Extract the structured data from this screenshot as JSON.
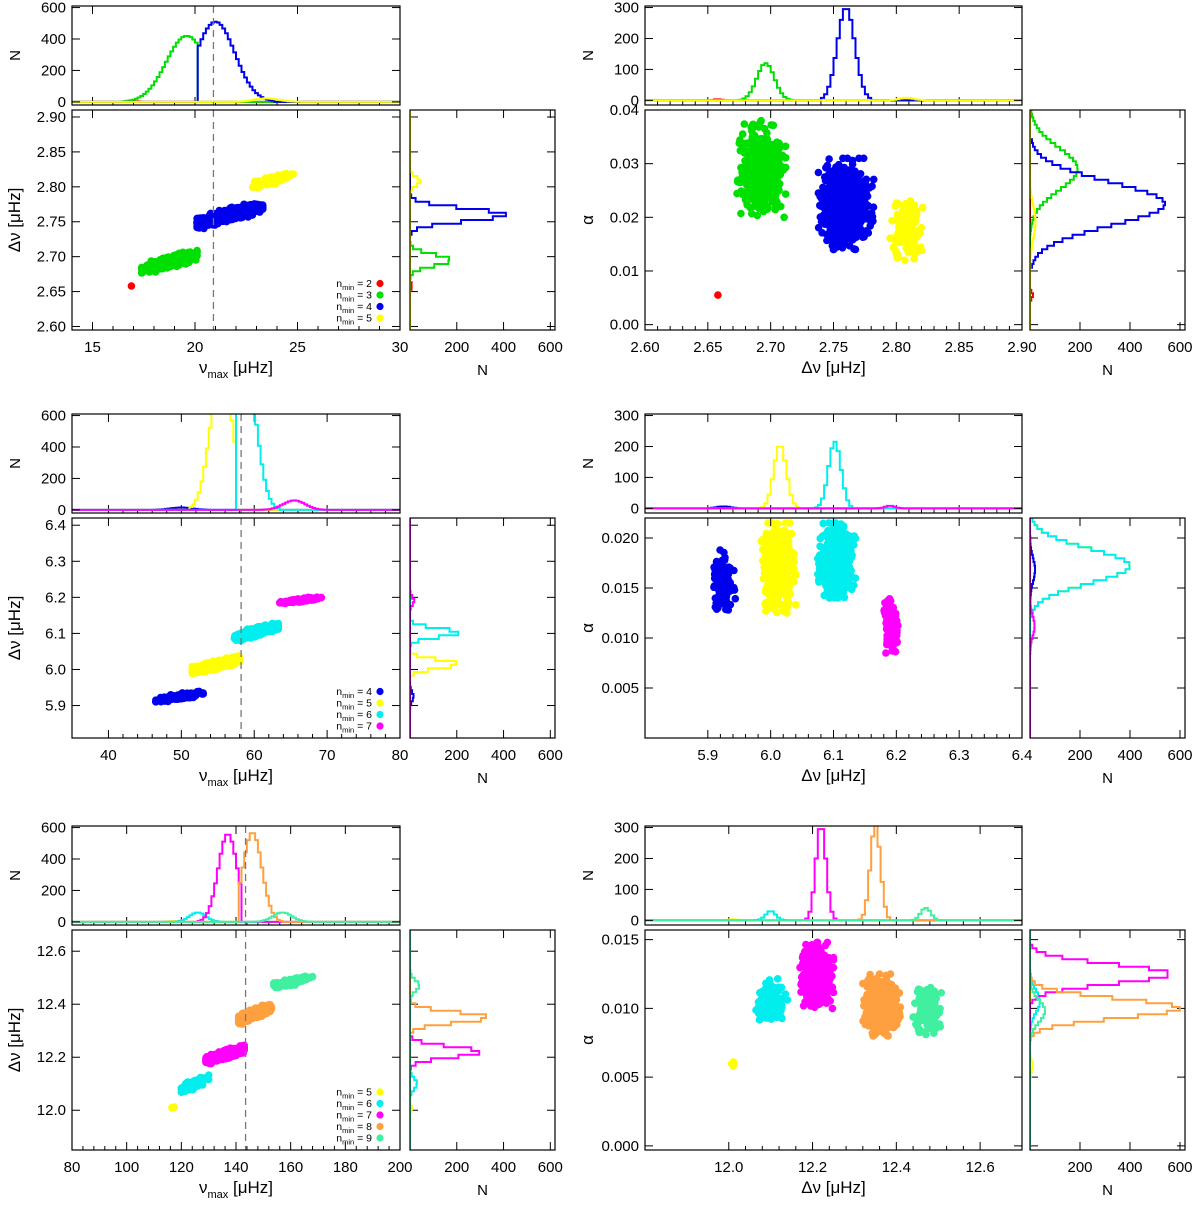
{
  "chart_data": [
    {
      "type": "scatter",
      "xlabel": "ν_max [μHz]",
      "ylabel": "Δν [μHz]",
      "xlim": [
        14,
        30
      ],
      "xticks": [
        15,
        20,
        25,
        30
      ],
      "ylim": [
        2.595,
        2.91
      ],
      "yticks": [
        2.6,
        2.65,
        2.7,
        2.75,
        2.8,
        2.85,
        2.9
      ],
      "ydec": 2,
      "vline": 20.9,
      "legend": [
        "n_min = 2",
        "n_min = 3",
        "n_min = 4",
        "n_min = 5"
      ],
      "legend_colors": [
        "#ff0000",
        "#00e000",
        "#0000ee",
        "#ffff00"
      ],
      "clusters": [
        {
          "color": "#ff0000",
          "x": [
            16.9,
            16.9
          ],
          "y": [
            2.658,
            2.658
          ],
          "n": 1
        },
        {
          "color": "#00e000",
          "x": [
            17.4,
            20.1
          ],
          "y": [
            2.672,
            2.712
          ],
          "n": 420
        },
        {
          "color": "#0000ee",
          "x": [
            20.1,
            23.3
          ],
          "y": [
            2.738,
            2.782
          ],
          "n": 700
        },
        {
          "color": "#ffff00",
          "x": [
            22.8,
            24.8
          ],
          "y": [
            2.795,
            2.825
          ],
          "n": 160
        }
      ],
      "top_hist": {
        "ylabel": "N",
        "ylim": [
          -20,
          610
        ],
        "yticks": [
          0,
          200,
          400,
          600
        ],
        "series": [
          {
            "color": "#ff0000",
            "center": 16.9,
            "sigma": 0.25,
            "peak": 6
          },
          {
            "color": "#00e000",
            "center": 19.6,
            "sigma": 1.0,
            "peak": 420,
            "max": 20.15
          },
          {
            "color": "#0000ee",
            "center": 21.0,
            "sigma": 0.95,
            "peak": 510,
            "min": 20.15
          },
          {
            "color": "#ffff00",
            "center": 23.5,
            "sigma": 0.6,
            "peak": 22
          }
        ]
      },
      "right_hist": {
        "xlabel": "N",
        "xlim": [
          0,
          620
        ],
        "xticks": [
          200,
          400,
          600
        ],
        "xtick_labels": [
          "200",
          "400",
          "600"
        ],
        "series": [
          {
            "color": "#ff0000",
            "center": 2.658,
            "sigma": 0.003,
            "peak": 10
          },
          {
            "color": "#00e000",
            "center": 2.695,
            "sigma": 0.008,
            "peak": 175
          },
          {
            "color": "#0000ee",
            "center": 2.76,
            "sigma": 0.009,
            "peak": 410
          },
          {
            "color": "#ffff00",
            "center": 2.808,
            "sigma": 0.006,
            "peak": 45
          }
        ]
      }
    },
    {
      "type": "scatter",
      "xlabel": "Δν [μHz]",
      "ylabel": "α",
      "xlim": [
        2.6,
        2.9
      ],
      "xticks": [
        2.6,
        2.65,
        2.7,
        2.75,
        2.8,
        2.85,
        2.9
      ],
      "xdec": 2,
      "ylim": [
        -0.001,
        0.04
      ],
      "yticks": [
        0.0,
        0.01,
        0.02,
        0.03,
        0.04
      ],
      "ydec": 2,
      "clusters": [
        {
          "color": "#ff0000",
          "x": [
            2.658,
            2.658
          ],
          "y": [
            0.0055,
            0.0055
          ],
          "n": 1
        },
        {
          "color": "#00e000",
          "x": [
            2.672,
            2.712
          ],
          "y": [
            0.02,
            0.038
          ],
          "n": 420
        },
        {
          "color": "#0000ee",
          "x": [
            2.738,
            2.782
          ],
          "y": [
            0.014,
            0.031
          ],
          "n": 700
        },
        {
          "color": "#ffff00",
          "x": [
            2.795,
            2.822
          ],
          "y": [
            0.011,
            0.024
          ],
          "n": 120
        }
      ],
      "top_hist": {
        "ylabel": "N",
        "ylim": [
          -15,
          305
        ],
        "yticks": [
          0,
          100,
          200,
          300
        ],
        "series": [
          {
            "color": "#ff0000",
            "center": 2.658,
            "sigma": 0.003,
            "peak": 3
          },
          {
            "color": "#00e000",
            "center": 2.696,
            "sigma": 0.007,
            "peak": 120
          },
          {
            "color": "#0000ee",
            "center": 2.76,
            "sigma": 0.007,
            "peak": 300
          },
          {
            "color": "#ffff00",
            "center": 2.808,
            "sigma": 0.006,
            "peak": 8
          }
        ]
      },
      "right_hist": {
        "xlabel": "N",
        "xlim": [
          0,
          620
        ],
        "xticks": [
          200,
          400,
          600
        ],
        "xtick_labels": [
          "200",
          "400",
          "600"
        ],
        "series": [
          {
            "color": "#ff0000",
            "center": 0.0055,
            "sigma": 0.0005,
            "peak": 12
          },
          {
            "color": "#00e000",
            "center": 0.029,
            "sigma": 0.004,
            "peak": 190
          },
          {
            "color": "#0000ee",
            "center": 0.0225,
            "sigma": 0.004,
            "peak": 540
          },
          {
            "color": "#ffff00",
            "center": 0.019,
            "sigma": 0.003,
            "peak": 22
          }
        ]
      }
    },
    {
      "type": "scatter",
      "xlabel": "ν_max [μHz]",
      "ylabel": "Δν [μHz]",
      "xlim": [
        35,
        80
      ],
      "xticks": [
        40,
        50,
        60,
        70,
        80
      ],
      "ylim": [
        5.81,
        6.42
      ],
      "yticks": [
        5.9,
        6.0,
        6.1,
        6.2,
        6.3,
        6.4
      ],
      "ydec": 1,
      "vline": 58.2,
      "legend": [
        "n_min = 4",
        "n_min = 5",
        "n_min = 6",
        "n_min = 7"
      ],
      "legend_colors": [
        "#0000ee",
        "#ffff00",
        "#00eeee",
        "#ff00ff"
      ],
      "clusters": [
        {
          "color": "#0000ee",
          "x": [
            46.5,
            53.0
          ],
          "y": [
            5.905,
            5.945
          ],
          "n": 140
        },
        {
          "color": "#ffff00",
          "x": [
            51.5,
            58.0
          ],
          "y": [
            5.985,
            6.04
          ],
          "n": 520
        },
        {
          "color": "#00eeee",
          "x": [
            57.3,
            63.3
          ],
          "y": [
            6.075,
            6.135
          ],
          "n": 560
        },
        {
          "color": "#ff00ff",
          "x": [
            63.5,
            69.5
          ],
          "y": [
            6.18,
            6.205
          ],
          "n": 150
        }
      ],
      "top_hist": {
        "ylabel": "N",
        "ylim": [
          -20,
          610
        ],
        "yticks": [
          0,
          200,
          400,
          600
        ],
        "series": [
          {
            "color": "#0000ee",
            "center": 50.0,
            "sigma": 1.5,
            "peak": 15
          },
          {
            "color": "#ffff00",
            "center": 55.5,
            "sigma": 1.5,
            "peak": 900,
            "max": 57.4
          },
          {
            "color": "#00eeee",
            "center": 58.8,
            "sigma": 1.5,
            "peak": 900,
            "min": 57.4
          },
          {
            "color": "#ff00ff",
            "center": 65.5,
            "sigma": 1.5,
            "peak": 60
          }
        ]
      },
      "right_hist": {
        "xlabel": "N",
        "xlim": [
          0,
          620
        ],
        "xticks": [
          200,
          400,
          600
        ],
        "xtick_labels": [
          "200",
          "400",
          "600"
        ],
        "series": [
          {
            "color": "#0000ee",
            "center": 5.925,
            "sigma": 0.012,
            "peak": 15
          },
          {
            "color": "#ffff00",
            "center": 6.015,
            "sigma": 0.012,
            "peak": 205
          },
          {
            "color": "#00eeee",
            "center": 6.102,
            "sigma": 0.012,
            "peak": 210
          },
          {
            "color": "#ff00ff",
            "center": 6.19,
            "sigma": 0.01,
            "peak": 18
          }
        ]
      }
    },
    {
      "type": "scatter",
      "xlabel": "Δν [μHz]",
      "ylabel": "α",
      "xlim": [
        5.8,
        6.4
      ],
      "xticks": [
        5.9,
        6.0,
        6.1,
        6.2,
        6.3,
        6.4
      ],
      "xdec": 1,
      "ylim": [
        0.0,
        0.022
      ],
      "yticks": [
        0.005,
        0.01,
        0.015,
        0.02
      ],
      "ydec": 3,
      "clusters": [
        {
          "color": "#0000ee",
          "x": [
            5.905,
            5.945
          ],
          "y": [
            0.012,
            0.0188
          ],
          "n": 110
        },
        {
          "color": "#ffff00",
          "x": [
            5.985,
            6.04
          ],
          "y": [
            0.0125,
            0.0215
          ],
          "n": 520
        },
        {
          "color": "#00eeee",
          "x": [
            6.075,
            6.135
          ],
          "y": [
            0.014,
            0.0215
          ],
          "n": 520
        },
        {
          "color": "#ff00ff",
          "x": [
            6.178,
            6.205
          ],
          "y": [
            0.0085,
            0.014
          ],
          "n": 110
        }
      ],
      "top_hist": {
        "ylabel": "N",
        "ylim": [
          -15,
          305
        ],
        "yticks": [
          0,
          100,
          200,
          300
        ],
        "series": [
          {
            "color": "#0000ee",
            "center": 5.925,
            "sigma": 0.012,
            "peak": 6
          },
          {
            "color": "#ffff00",
            "center": 6.015,
            "sigma": 0.01,
            "peak": 205
          },
          {
            "color": "#00eeee",
            "center": 6.102,
            "sigma": 0.01,
            "peak": 215
          },
          {
            "color": "#ff00ff",
            "center": 6.19,
            "sigma": 0.008,
            "peak": 8
          }
        ]
      },
      "right_hist": {
        "xlabel": "N",
        "xlim": [
          0,
          620
        ],
        "xticks": [
          200,
          400,
          600
        ],
        "xtick_labels": [
          "200",
          "400",
          "600"
        ],
        "series": [
          {
            "color": "#0000ee",
            "center": 0.0168,
            "sigma": 0.0012,
            "peak": 20
          },
          {
            "color": "#ffff00",
            "center": 0.0172,
            "sigma": 0.0017,
            "peak": 400
          },
          {
            "color": "#00eeee",
            "center": 0.0172,
            "sigma": 0.0017,
            "peak": 400
          },
          {
            "color": "#ff00ff",
            "center": 0.0112,
            "sigma": 0.001,
            "peak": 18
          }
        ]
      }
    },
    {
      "type": "scatter",
      "xlabel": "ν_max [μHz]",
      "ylabel": "Δν [μHz]",
      "xlim": [
        80,
        200
      ],
      "xticks": [
        80,
        100,
        120,
        140,
        160,
        180,
        200
      ],
      "ylim": [
        11.85,
        12.68
      ],
      "yticks": [
        12.0,
        12.2,
        12.4,
        12.6
      ],
      "ydec": 1,
      "vline": 143.5,
      "legend": [
        "n_min = 5",
        "n_min = 6",
        "n_min = 7",
        "n_min = 8",
        "n_min = 9"
      ],
      "legend_colors": [
        "#ffff00",
        "#00eeee",
        "#ff00ff",
        "#ffa040",
        "#40f0a0"
      ],
      "clusters": [
        {
          "color": "#ffff00",
          "x": [
            116,
            118
          ],
          "y": [
            12.005,
            12.015
          ],
          "n": 8
        },
        {
          "color": "#00eeee",
          "x": [
            120,
            130
          ],
          "y": [
            12.06,
            12.14
          ],
          "n": 120
        },
        {
          "color": "#ff00ff",
          "x": [
            129,
            143
          ],
          "y": [
            12.17,
            12.25
          ],
          "n": 520
        },
        {
          "color": "#ffa040",
          "x": [
            141,
            153
          ],
          "y": [
            12.32,
            12.41
          ],
          "n": 520
        },
        {
          "color": "#40f0a0",
          "x": [
            153,
            168
          ],
          "y": [
            12.45,
            12.52
          ],
          "n": 140
        }
      ],
      "top_hist": {
        "ylabel": "N",
        "ylim": [
          -20,
          610
        ],
        "yticks": [
          0,
          200,
          400,
          600
        ],
        "series": [
          {
            "color": "#ffff00",
            "center": 117,
            "sigma": 2,
            "peak": 5
          },
          {
            "color": "#00eeee",
            "center": 126,
            "sigma": 3,
            "peak": 60
          },
          {
            "color": "#ff00ff",
            "center": 137,
            "sigma": 3.5,
            "peak": 560,
            "max": 141.5
          },
          {
            "color": "#ffa040",
            "center": 146,
            "sigma": 3.5,
            "peak": 570,
            "min": 141.5
          },
          {
            "color": "#40f0a0",
            "center": 157,
            "sigma": 3.5,
            "peak": 60
          }
        ]
      },
      "right_hist": {
        "xlabel": "N",
        "xlim": [
          0,
          620
        ],
        "xticks": [
          200,
          400,
          600
        ],
        "xtick_labels": [
          "200",
          "400",
          "600"
        ],
        "series": [
          {
            "color": "#ffff00",
            "center": 12.01,
            "sigma": 0.01,
            "peak": 8
          },
          {
            "color": "#00eeee",
            "center": 12.1,
            "sigma": 0.02,
            "peak": 30
          },
          {
            "color": "#ff00ff",
            "center": 12.22,
            "sigma": 0.02,
            "peak": 300
          },
          {
            "color": "#ffa040",
            "center": 12.35,
            "sigma": 0.02,
            "peak": 335
          },
          {
            "color": "#40f0a0",
            "center": 12.47,
            "sigma": 0.02,
            "peak": 40
          }
        ]
      }
    },
    {
      "type": "scatter",
      "xlabel": "Δν [μHz]",
      "ylabel": "α",
      "xlim": [
        11.8,
        12.7
      ],
      "xticks": [
        12.0,
        12.2,
        12.4,
        12.6
      ],
      "xdec": 1,
      "ylim": [
        -0.0003,
        0.0157
      ],
      "yticks": [
        0.0,
        0.005,
        0.01,
        0.015
      ],
      "ydec": 3,
      "clusters": [
        {
          "color": "#ffff00",
          "x": [
            12.005,
            12.015
          ],
          "y": [
            0.0055,
            0.0062
          ],
          "n": 5
        },
        {
          "color": "#00eeee",
          "x": [
            12.06,
            12.14
          ],
          "y": [
            0.0088,
            0.0123
          ],
          "n": 120
        },
        {
          "color": "#ff00ff",
          "x": [
            12.17,
            12.25
          ],
          "y": [
            0.01,
            0.0148
          ],
          "n": 520
        },
        {
          "color": "#ffa040",
          "x": [
            12.32,
            12.41
          ],
          "y": [
            0.008,
            0.0125
          ],
          "n": 520
        },
        {
          "color": "#40f0a0",
          "x": [
            12.44,
            12.51
          ],
          "y": [
            0.0078,
            0.0118
          ],
          "n": 140
        }
      ],
      "top_hist": {
        "ylabel": "N",
        "ylim": [
          -15,
          305
        ],
        "yticks": [
          0,
          100,
          200,
          300
        ],
        "series": [
          {
            "color": "#ffff00",
            "center": 12.01,
            "sigma": 0.01,
            "peak": 3
          },
          {
            "color": "#00eeee",
            "center": 12.1,
            "sigma": 0.012,
            "peak": 30
          },
          {
            "color": "#ff00ff",
            "center": 12.22,
            "sigma": 0.012,
            "peak": 310
          },
          {
            "color": "#ffa040",
            "center": 12.35,
            "sigma": 0.012,
            "peak": 310
          },
          {
            "color": "#40f0a0",
            "center": 12.47,
            "sigma": 0.012,
            "peak": 40
          }
        ]
      },
      "right_hist": {
        "xlabel": "N",
        "xlim": [
          0,
          620
        ],
        "xticks": [
          200,
          400,
          600
        ],
        "xtick_labels": [
          "200",
          "400",
          "600"
        ],
        "series": [
          {
            "color": "#ffff00",
            "center": 0.0058,
            "sigma": 0.0004,
            "peak": 10
          },
          {
            "color": "#00eeee",
            "center": 0.0105,
            "sigma": 0.0008,
            "peak": 40
          },
          {
            "color": "#ff00ff",
            "center": 0.0125,
            "sigma": 0.0007,
            "peak": 560
          },
          {
            "color": "#ffa040",
            "center": 0.01,
            "sigma": 0.0007,
            "peak": 600
          },
          {
            "color": "#40f0a0",
            "center": 0.0098,
            "sigma": 0.0008,
            "peak": 60
          }
        ]
      }
    }
  ]
}
